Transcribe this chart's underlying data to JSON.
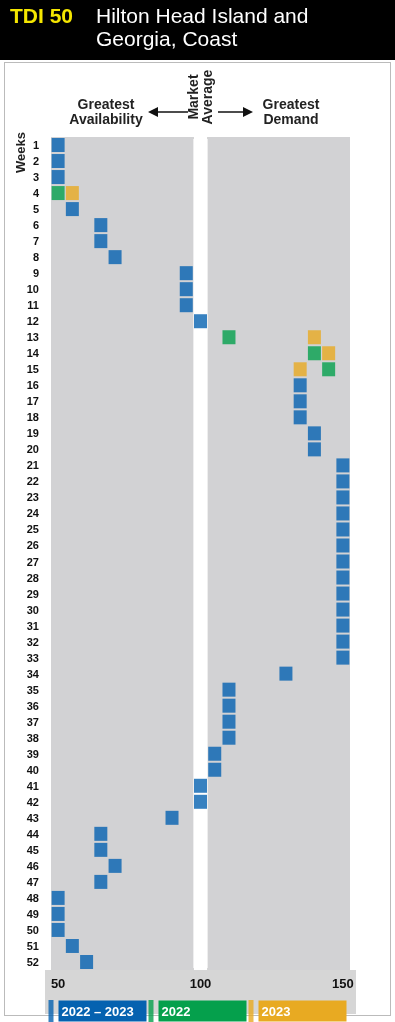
{
  "chart_data": {
    "type": "scatter",
    "title": "TDI 50",
    "subtitle": "Hilton Head Island and Georgia, Coast",
    "ylabel": "Weeks",
    "annotations": [
      "Greatest Availability",
      "Greatest Demand"
    ],
    "xlim": [
      47.5,
      152.5
    ],
    "xticks": [
      50,
      100,
      150
    ],
    "ylim": [
      52.5,
      0.5
    ],
    "yticks": [
      1,
      2,
      3,
      4,
      5,
      6,
      7,
      8,
      9,
      10,
      11,
      12,
      13,
      14,
      15,
      16,
      17,
      18,
      19,
      20,
      21,
      22,
      23,
      24,
      25,
      26,
      27,
      28,
      29,
      30,
      31,
      32,
      33,
      34,
      35,
      36,
      37,
      38,
      39,
      40,
      41,
      42,
      43,
      44,
      45,
      46,
      47,
      48,
      49,
      50,
      51,
      52
    ],
    "ref_lines": [
      {
        "axis": "x",
        "value": 100,
        "label": "Market Average",
        "color": "#ffffff"
      }
    ],
    "bands": [
      {
        "axis": "x",
        "from": 47.5,
        "to": 97.5,
        "color": "#d2d2d4"
      },
      {
        "axis": "x",
        "from": 102.5,
        "to": 152.5,
        "color": "#d2d2d4"
      }
    ],
    "marker": "square",
    "grid": false,
    "legend": "bottom",
    "series": [
      {
        "name": "2022 – 2023",
        "color": "#0562b0",
        "x": [
          50,
          50,
          50,
          55,
          65,
          65,
          70,
          95,
          95,
          95,
          100,
          135,
          135,
          135,
          140,
          140,
          150,
          150,
          150,
          150,
          150,
          150,
          150,
          150,
          150,
          150,
          150,
          150,
          150,
          130,
          110,
          110,
          110,
          110,
          105,
          105,
          100,
          100,
          90,
          65,
          65,
          70,
          65,
          50,
          50,
          50,
          55,
          60
        ],
        "values": [
          1,
          2,
          3,
          5,
          6,
          7,
          8,
          9,
          10,
          11,
          12,
          16,
          17,
          18,
          19,
          20,
          21,
          22,
          23,
          24,
          25,
          26,
          27,
          28,
          29,
          30,
          31,
          32,
          33,
          34,
          35,
          36,
          37,
          38,
          39,
          40,
          41,
          42,
          43,
          44,
          45,
          46,
          47,
          48,
          49,
          50,
          51,
          52
        ]
      },
      {
        "name": "2022",
        "color": "#05a04c",
        "x": [
          50,
          110,
          140,
          145
        ],
        "values": [
          4,
          13,
          14,
          15
        ]
      },
      {
        "name": "2023",
        "color": "#e8aa22",
        "x": [
          55,
          140,
          145,
          135
        ],
        "values": [
          4,
          13,
          14,
          15
        ]
      }
    ]
  }
}
